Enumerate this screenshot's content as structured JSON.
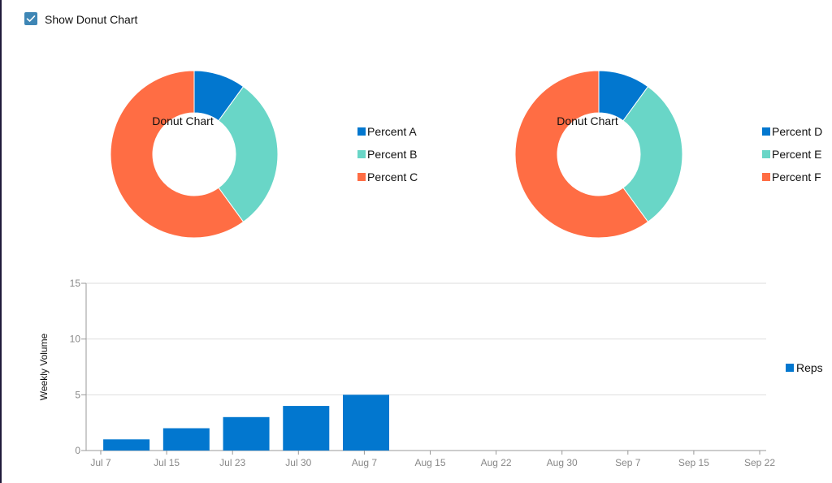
{
  "toggle": {
    "label": "Show Donut Chart",
    "checked": true
  },
  "chart_data": [
    {
      "type": "pie",
      "title": "Donut Chart",
      "hole": true,
      "legend_position": "right",
      "series": [
        {
          "name": "Percent A",
          "value": 10,
          "color": "#0277cf"
        },
        {
          "name": "Percent B",
          "value": 30,
          "color": "#69d6c7"
        },
        {
          "name": "Percent C",
          "value": 60,
          "color": "#ff6d44"
        }
      ]
    },
    {
      "type": "pie",
      "title": "Donut Chart",
      "hole": true,
      "legend_position": "right",
      "series": [
        {
          "name": "Percent D",
          "value": 10,
          "color": "#0277cf"
        },
        {
          "name": "Percent E",
          "value": 30,
          "color": "#69d6c7"
        },
        {
          "name": "Percent F",
          "value": 60,
          "color": "#ff6d44"
        }
      ]
    },
    {
      "type": "bar",
      "title": "",
      "xlabel": "",
      "ylabel": "Weekly Volume",
      "ylim": [
        0,
        15
      ],
      "yticks": [
        0,
        5,
        10,
        15
      ],
      "xlim": [
        "2023-07-07",
        "2023-09-22"
      ],
      "xtick_labels": [
        "Jul 7",
        "Jul 15",
        "Jul 23",
        "Jul 30",
        "Aug 7",
        "Aug 15",
        "Aug 22",
        "Aug 30",
        "Sep 7",
        "Sep 15",
        "Sep 22"
      ],
      "legend_position": "right",
      "grid": true,
      "series": [
        {
          "name": "Reps",
          "color": "#0277cf",
          "x": [
            "2023-07-10",
            "2023-07-17",
            "2023-07-24",
            "2023-07-31",
            "2023-08-07"
          ],
          "values": [
            1,
            2,
            3,
            4,
            5
          ]
        }
      ]
    }
  ]
}
